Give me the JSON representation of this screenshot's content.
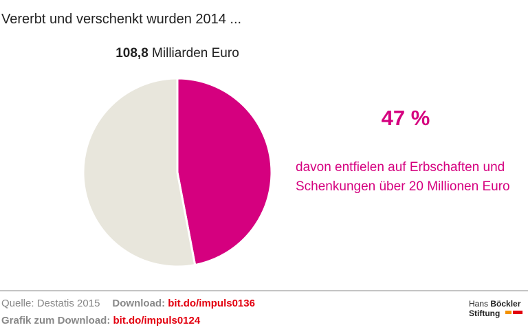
{
  "chart_data": {
    "type": "pie",
    "title": "Vererbt und verschenkt wurden 2014 ...",
    "total_value": "108,8",
    "total_unit": "Milliarden Euro",
    "values": [
      47,
      53
    ],
    "colors": [
      "#d5007f",
      "#e8e6dc"
    ],
    "value_labels": [
      "47 %",
      null
    ],
    "annotation": [
      "davon entfielen auf Erbschaften und",
      "Schenkungen über 20 Millionen Euro"
    ]
  },
  "footer": {
    "source": "Quelle: Destatis 2015",
    "download_label": "Download:",
    "download_link": "bit.do/impuls0136",
    "graphic_label": "Grafik zum Download:",
    "graphic_link": "bit.do/impuls0124"
  },
  "logo": [
    "Hans",
    "Böckler",
    "Stiftung"
  ]
}
